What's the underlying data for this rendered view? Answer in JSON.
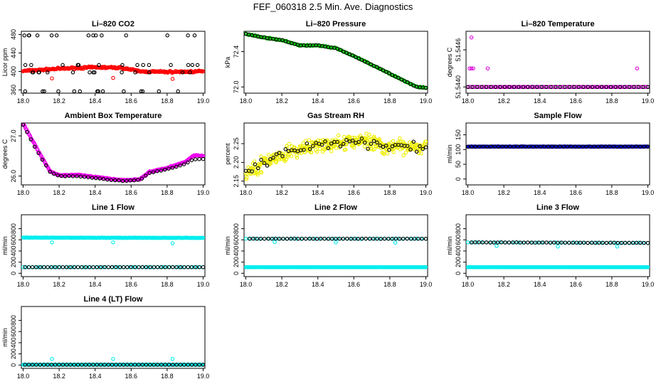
{
  "title": "FEF_060318  2.5 Min. Ave. Diagnostics",
  "chart_data": [
    {
      "id": "co2",
      "type": "scatter",
      "title": "Li–820 CO2",
      "ylabel": "Licor ppm",
      "xlim": [
        17.99,
        19.01
      ],
      "xticks": [
        "18.0",
        "18.2",
        "18.4",
        "18.6",
        "18.8",
        "19.0"
      ],
      "ylim": [
        353,
        487
      ],
      "yticks": [
        "360",
        "400",
        "440",
        "480"
      ],
      "series": [
        {
          "color": "#ff0000",
          "gen": {
            "kind": "curve",
            "pts": [
              [
                18.0,
                401
              ],
              [
                18.2,
                406
              ],
              [
                18.4,
                409
              ],
              [
                18.55,
                408
              ],
              [
                18.65,
                400
              ],
              [
                18.8,
                399
              ],
              [
                19.0,
                400
              ]
            ],
            "n": 250,
            "noise": 3
          }
        },
        {
          "color": "#ff0000",
          "points": [
            [
              18.16,
              385
            ],
            [
              18.5,
              386
            ],
            [
              18.83,
              384
            ]
          ]
        },
        {
          "color": "#000000",
          "gen": {
            "kind": "band",
            "y": [
              478,
              414,
              398,
              357
            ],
            "n": 14
          }
        }
      ]
    },
    {
      "id": "pressure",
      "type": "scatter",
      "title": "Li–820 Pressure",
      "ylabel": "kPa",
      "xlim": [
        17.99,
        19.01
      ],
      "xticks": [
        "18.0",
        "18.2",
        "18.4",
        "18.6",
        "18.8",
        "19.0"
      ],
      "ylim": [
        71.93,
        72.63
      ],
      "yticks": [
        "72.0",
        "72.4"
      ],
      "series": [
        {
          "color": "#00c000",
          "gen": {
            "kind": "curve",
            "pts": [
              [
                18.0,
                72.6
              ],
              [
                18.1,
                72.56
              ],
              [
                18.2,
                72.53
              ],
              [
                18.3,
                72.47
              ],
              [
                18.4,
                72.47
              ],
              [
                18.5,
                72.44
              ],
              [
                18.6,
                72.35
              ],
              [
                18.7,
                72.25
              ],
              [
                18.8,
                72.15
              ],
              [
                18.9,
                72.05
              ],
              [
                18.95,
                72.0
              ],
              [
                19.0,
                71.99
              ]
            ],
            "n": 200,
            "noise": 0.008
          }
        },
        {
          "color": "#000000",
          "gen": {
            "kind": "curve",
            "pts": [
              [
                18.0,
                72.6
              ],
              [
                18.1,
                72.56
              ],
              [
                18.2,
                72.53
              ],
              [
                18.3,
                72.47
              ],
              [
                18.4,
                72.47
              ],
              [
                18.5,
                72.44
              ],
              [
                18.6,
                72.35
              ],
              [
                18.7,
                72.25
              ],
              [
                18.8,
                72.15
              ],
              [
                18.9,
                72.05
              ],
              [
                18.95,
                72.0
              ],
              [
                19.0,
                71.99
              ]
            ],
            "n": 60,
            "noise": 0.004
          }
        }
      ]
    },
    {
      "id": "temp",
      "type": "scatter",
      "title": "Li–820 Temperature",
      "ylabel": "degrees C",
      "xlim": [
        17.99,
        19.01
      ],
      "xticks": [
        "18.0",
        "18.2",
        "18.4",
        "18.6",
        "18.8",
        "19.0"
      ],
      "ylim": [
        51.5439,
        51.5449
      ],
      "yticks": [
        "51.5440",
        "51.5446"
      ],
      "series": [
        {
          "color": "#dd00dd",
          "gen": {
            "kind": "curve",
            "pts": [
              [
                18.0,
                51.544
              ],
              [
                19.0,
                51.544
              ]
            ],
            "n": 120,
            "noise": 0
          }
        },
        {
          "color": "#000000",
          "gen": {
            "kind": "curve",
            "pts": [
              [
                18.0,
                51.544
              ],
              [
                19.0,
                51.544
              ]
            ],
            "n": 40,
            "noise": 0
          }
        },
        {
          "color": "#dd00dd",
          "points": [
            [
              18.01,
              51.5443
            ],
            [
              18.02,
              51.5443
            ],
            [
              18.03,
              51.5443
            ],
            [
              18.02,
              51.5448
            ],
            [
              18.11,
              51.5443
            ],
            [
              18.94,
              51.5443
            ]
          ]
        }
      ]
    },
    {
      "id": "ambient",
      "type": "scatter",
      "title": "Ambient Box Temperature",
      "ylabel": "degrees C",
      "xlim": [
        17.99,
        19.01
      ],
      "xticks": [
        "18.0",
        "18.2",
        "18.4",
        "18.6",
        "18.8",
        "19.0"
      ],
      "ylim": [
        25.78,
        27.32
      ],
      "yticks": [
        "26.0",
        "27.0"
      ],
      "series": [
        {
          "color": "#ee00ee",
          "gen": {
            "kind": "curve",
            "pts": [
              [
                18.0,
                27.3
              ],
              [
                18.05,
                26.9
              ],
              [
                18.1,
                26.5
              ],
              [
                18.15,
                26.12
              ],
              [
                18.2,
                26.02
              ],
              [
                18.3,
                26.03
              ],
              [
                18.45,
                25.95
              ],
              [
                18.55,
                25.9
              ],
              [
                18.65,
                25.92
              ],
              [
                18.7,
                26.1
              ],
              [
                18.8,
                26.2
              ],
              [
                18.9,
                26.35
              ],
              [
                18.95,
                26.52
              ],
              [
                19.0,
                26.5
              ]
            ],
            "n": 260,
            "noise": 0.02
          }
        },
        {
          "color": "#000000",
          "gen": {
            "kind": "curve",
            "pts": [
              [
                18.0,
                27.28
              ],
              [
                18.05,
                26.85
              ],
              [
                18.1,
                26.45
              ],
              [
                18.15,
                26.1
              ],
              [
                18.2,
                26.0
              ],
              [
                18.3,
                26.0
              ],
              [
                18.45,
                25.92
              ],
              [
                18.55,
                25.88
              ],
              [
                18.65,
                25.9
              ],
              [
                18.7,
                26.08
              ],
              [
                18.8,
                26.17
              ],
              [
                18.9,
                26.3
              ],
              [
                18.95,
                26.42
              ],
              [
                19.0,
                26.42
              ]
            ],
            "n": 48,
            "noise": 0.01
          }
        }
      ]
    },
    {
      "id": "rh",
      "type": "scatter",
      "title": "Gas Stream RH",
      "ylabel": "percent",
      "xlim": [
        17.99,
        19.01
      ],
      "xticks": [
        "18.0",
        "18.2",
        "18.4",
        "18.6",
        "18.8",
        "19.0"
      ],
      "ylim": [
        2.14,
        2.305
      ],
      "yticks": [
        "2.15",
        "2.20",
        "2.25"
      ],
      "series": [
        {
          "color": "#eeee00",
          "gen": {
            "kind": "curve",
            "pts": [
              [
                18.0,
                2.17
              ],
              [
                18.1,
                2.2
              ],
              [
                18.2,
                2.22
              ],
              [
                18.35,
                2.24
              ],
              [
                18.5,
                2.25
              ],
              [
                18.65,
                2.26
              ],
              [
                18.8,
                2.24
              ],
              [
                19.0,
                2.245
              ]
            ],
            "n": 380,
            "noise": 0.028
          }
        },
        {
          "color": "#000000",
          "gen": {
            "kind": "curve",
            "pts": [
              [
                18.0,
                2.18
              ],
              [
                18.1,
                2.2
              ],
              [
                18.2,
                2.22
              ],
              [
                18.35,
                2.24
              ],
              [
                18.5,
                2.25
              ],
              [
                18.65,
                2.255
              ],
              [
                18.8,
                2.24
              ],
              [
                19.0,
                2.24
              ]
            ],
            "n": 60,
            "noise": 0.02
          }
        }
      ]
    },
    {
      "id": "sample",
      "type": "scatter",
      "title": "Sample Flow",
      "ylabel": "ml/min",
      "xlim": [
        17.99,
        19.01
      ],
      "xticks": [
        "18.0",
        "18.2",
        "18.4",
        "18.6",
        "18.8",
        "19.0"
      ],
      "ylim": [
        -20,
        190
      ],
      "yticks": [
        "0",
        "50",
        "100",
        "150"
      ],
      "series": [
        {
          "color": "#0000cc",
          "gen": {
            "kind": "curve",
            "pts": [
              [
                18.0,
                110
              ],
              [
                19.0,
                110
              ]
            ],
            "n": 260,
            "noise": 1
          }
        },
        {
          "color": "#000000",
          "gen": {
            "kind": "curve",
            "pts": [
              [
                18.0,
                110
              ],
              [
                19.0,
                110
              ]
            ],
            "n": 48,
            "noise": 0.5
          }
        }
      ]
    },
    {
      "id": "line1",
      "type": "scatter",
      "title": "Line 1 Flow",
      "ylabel": "ml/min",
      "xlim": [
        17.99,
        19.01
      ],
      "xticks": [
        "18.0",
        "18.2",
        "18.4",
        "18.6",
        "18.8",
        "19.0"
      ],
      "ylim": [
        -60,
        1050
      ],
      "yticks": [
        "0",
        "200",
        "400",
        "600",
        "800"
      ],
      "series": [
        {
          "color": "#00eeee",
          "gen": {
            "kind": "curve",
            "pts": [
              [
                18.0,
                640
              ],
              [
                19.0,
                635
              ]
            ],
            "n": 260,
            "noise": 6
          }
        },
        {
          "color": "#00eeee",
          "points": [
            [
              18.16,
              555
            ],
            [
              18.5,
              555
            ],
            [
              18.83,
              540
            ]
          ]
        },
        {
          "color": "#00eeee",
          "gen": {
            "kind": "curve",
            "pts": [
              [
                18.0,
                110
              ],
              [
                19.0,
                110
              ]
            ],
            "n": 60,
            "noise": 2
          }
        },
        {
          "color": "#000000",
          "gen": {
            "kind": "curve",
            "pts": [
              [
                18.01,
                110
              ],
              [
                19.0,
                110
              ]
            ],
            "n": 48,
            "noise": 1
          }
        }
      ]
    },
    {
      "id": "line2",
      "type": "scatter",
      "title": "Line 2 Flow",
      "ylabel": "ml/min",
      "xlim": [
        17.99,
        19.01
      ],
      "xticks": [
        "18.0",
        "18.2",
        "18.4",
        "18.6",
        "18.8",
        "19.0"
      ],
      "ylim": [
        -60,
        1050
      ],
      "yticks": [
        "0",
        "200",
        "400",
        "600",
        "800"
      ],
      "series": [
        {
          "color": "#00eeee",
          "gen": {
            "kind": "curve",
            "pts": [
              [
                18.0,
                110
              ],
              [
                19.0,
                110
              ]
            ],
            "n": 260,
            "noise": 2
          }
        },
        {
          "color": "#00eeee",
          "gen": {
            "kind": "curve",
            "pts": [
              [
                18.0,
                620
              ],
              [
                19.0,
                620
              ]
            ],
            "n": 40,
            "noise": 4
          }
        },
        {
          "color": "#00eeee",
          "points": [
            [
              18.16,
              560
            ],
            [
              18.5,
              555
            ],
            [
              18.83,
              550
            ]
          ]
        },
        {
          "color": "#000000",
          "gen": {
            "kind": "curve",
            "pts": [
              [
                18.02,
                620
              ],
              [
                19.0,
                620
              ]
            ],
            "n": 48,
            "noise": 3
          }
        }
      ]
    },
    {
      "id": "line3",
      "type": "scatter",
      "title": "Line 3 Flow",
      "ylabel": "ml/min",
      "xlim": [
        17.99,
        19.01
      ],
      "xticks": [
        "18.0",
        "18.2",
        "18.4",
        "18.6",
        "18.8",
        "19.0"
      ],
      "ylim": [
        -60,
        1050
      ],
      "yticks": [
        "0",
        "200",
        "400",
        "600",
        "800"
      ],
      "series": [
        {
          "color": "#00eeee",
          "gen": {
            "kind": "curve",
            "pts": [
              [
                18.0,
                110
              ],
              [
                19.0,
                110
              ]
            ],
            "n": 260,
            "noise": 2
          }
        },
        {
          "color": "#00eeee",
          "gen": {
            "kind": "curve",
            "pts": [
              [
                18.0,
                555
              ],
              [
                19.0,
                545
              ]
            ],
            "n": 40,
            "noise": 5
          }
        },
        {
          "color": "#00eeee",
          "points": [
            [
              18.16,
              490
            ],
            [
              18.5,
              480
            ],
            [
              18.83,
              480
            ]
          ]
        },
        {
          "color": "#000000",
          "gen": {
            "kind": "curve",
            "pts": [
              [
                18.02,
                555
              ],
              [
                19.0,
                545
              ]
            ],
            "n": 48,
            "noise": 3
          }
        }
      ]
    },
    {
      "id": "line4",
      "type": "scatter",
      "title": "Line 4 (LT) Flow",
      "ylabel": "ml/min",
      "xlim": [
        17.99,
        19.01
      ],
      "xticks": [
        "18.0",
        "18.2",
        "18.4",
        "18.6",
        "18.8",
        "19.0"
      ],
      "ylim": [
        -60,
        1050
      ],
      "yticks": [
        "0",
        "200",
        "400",
        "600",
        "800"
      ],
      "series": [
        {
          "color": "#00eeee",
          "gen": {
            "kind": "curve",
            "pts": [
              [
                18.0,
                5
              ],
              [
                19.0,
                5
              ]
            ],
            "n": 260,
            "noise": 1
          }
        },
        {
          "color": "#00eeee",
          "points": [
            [
              18.16,
              110
            ],
            [
              18.5,
              110
            ],
            [
              18.83,
              110
            ]
          ]
        },
        {
          "color": "#000000",
          "gen": {
            "kind": "curve",
            "pts": [
              [
                18.01,
                5
              ],
              [
                19.0,
                5
              ]
            ],
            "n": 48,
            "noise": 0.5
          }
        }
      ]
    }
  ]
}
